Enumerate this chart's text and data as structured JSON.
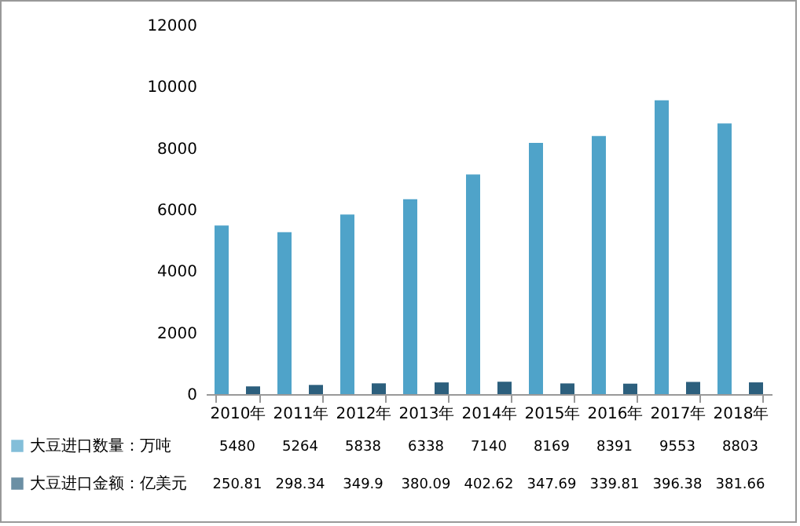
{
  "chart_data": {
    "type": "bar",
    "categories": [
      "2010年",
      "2011年",
      "2012年",
      "2013年",
      "2014年",
      "2015年",
      "2016年",
      "2017年",
      "2018年"
    ],
    "series": [
      {
        "name": "大豆进口数量：万吨",
        "color": "#4fa3c9",
        "values": [
          5480,
          5264,
          5838,
          6338,
          7140,
          8169,
          8391,
          9553,
          8803
        ]
      },
      {
        "name": "大豆进口金额：亿美元",
        "color": "#2c5f7d",
        "values": [
          250.81,
          298.34,
          349.9,
          380.09,
          402.62,
          347.69,
          339.81,
          396.38,
          381.66
        ]
      }
    ],
    "ylim": [
      0,
      12000
    ],
    "yticks": [
      0,
      2000,
      4000,
      6000,
      8000,
      10000,
      12000
    ],
    "data_labels": true,
    "legend": "bottom",
    "grid": false
  }
}
